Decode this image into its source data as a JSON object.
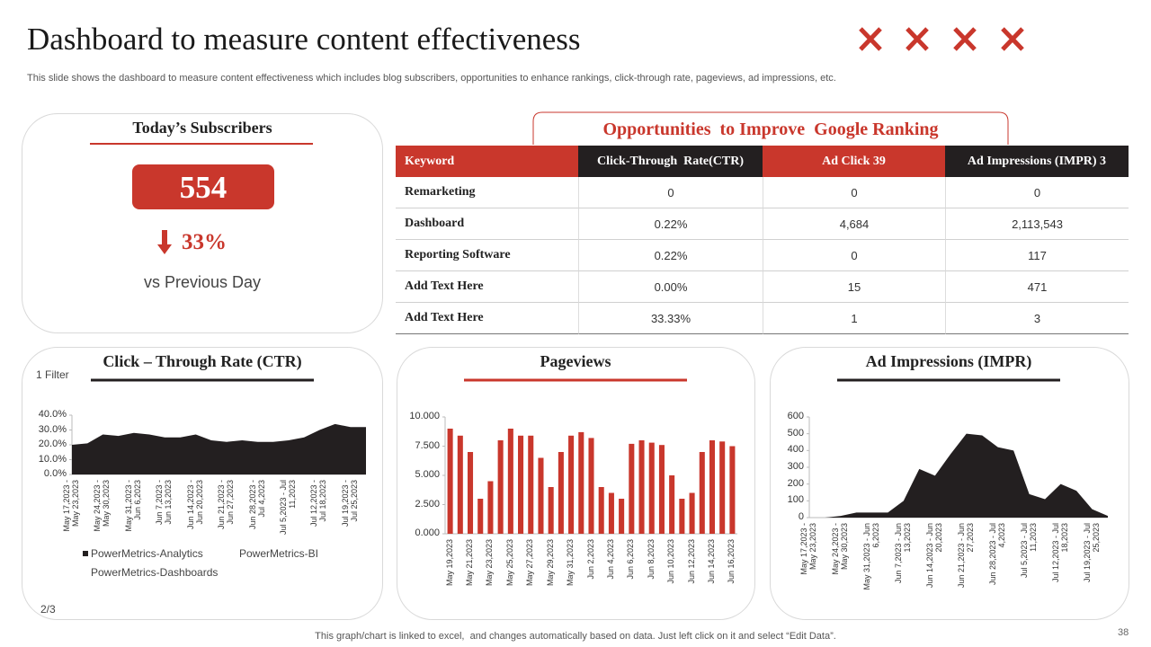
{
  "header": {
    "title": "Dashboard to measure content effectiveness",
    "subtitle": "This slide shows the dashboard to measure content effectiveness which includes blog subscribers, opportunities to enhance rankings, click-through rate, pageviews, ad impressions, etc."
  },
  "subscribers": {
    "title": "Today’s Subscribers",
    "value": 554,
    "change": "33%",
    "comparison": "vs Previous Day"
  },
  "table": {
    "title": "Opportunities  to Improve  Google Ranking",
    "header": [
      "Keyword",
      "Click-Through  Rate(CTR)",
      "Ad Click 39",
      "Ad Impressions (IMPR) 3"
    ],
    "header_colors": [
      "#c9372c",
      "#231f20",
      "#c9372c",
      "#231f20"
    ],
    "rows": [
      [
        "Remarketing",
        "0",
        "0",
        "0"
      ],
      [
        "Dashboard",
        "0.22%",
        "4,684",
        "2,113,543"
      ],
      [
        "Reporting Software",
        "0.22%",
        "0",
        "117"
      ],
      [
        "Add Text Here",
        "0.00%",
        "15",
        "471"
      ],
      [
        "Add Text Here",
        "33.33%",
        "1",
        "3"
      ]
    ]
  },
  "chart_data": [
    {
      "type": "area",
      "title": "Click – Through Rate (CTR)",
      "annotation": "1 Filter",
      "categories": [
        "May 17,2023 - May 23,2023",
        null,
        "May 24,2023 - May 30,2023",
        null,
        "May 31,2023 - Jun 6,2023",
        null,
        "Jun 7,2023 - Jun 13,2023",
        null,
        "Jun 14,2023 - Jun 20,2023",
        null,
        "Jun 21,2023 - Jun 27,2023",
        null,
        "Jun 28,2023 - Jul 4,2023",
        null,
        "Jul 5,2023 - Jul 11,2023",
        null,
        "Jul 12,2023 - Jul 18,2023",
        null,
        "Jul 19,2023 - Jul 25,2023",
        null
      ],
      "series": [
        {
          "name": "PowerMetrics-Analytics",
          "color": "#231f20",
          "values": [
            20,
            21,
            27,
            26,
            28,
            27,
            25,
            25,
            27,
            23,
            22,
            23,
            22,
            22,
            23,
            25,
            30,
            34,
            32,
            32
          ]
        },
        {
          "name": "PowerMetrics-BI",
          "values": [
            null,
            null,
            null,
            null,
            null,
            null,
            null,
            null,
            null,
            null,
            null,
            null,
            null,
            null,
            null,
            null,
            null,
            null,
            null,
            null
          ]
        },
        {
          "name": "PowerMetrics-Dashboards",
          "values": [
            null,
            null,
            null,
            null,
            null,
            null,
            null,
            null,
            null,
            null,
            null,
            null,
            null,
            null,
            null,
            null,
            null,
            null,
            null,
            null
          ]
        }
      ],
      "ylim": [
        0,
        40
      ],
      "yticks": [
        {
          "value": 0,
          "label": "0.0%"
        },
        {
          "value": 10,
          "label": "10.0%"
        },
        {
          "value": 20,
          "label": "20.0%"
        },
        {
          "value": 30,
          "label": "30.0%"
        },
        {
          "value": 40,
          "label": "40.0%"
        }
      ]
    },
    {
      "type": "bar",
      "title": "Pageviews",
      "categories": [
        "May 19,2023",
        null,
        "May 21,2023",
        null,
        "May 23,2023",
        null,
        "May 25,2023",
        null,
        "May 27,2023",
        null,
        "May 29,2023",
        null,
        "May 31,2023",
        null,
        "Jun 2,2023",
        null,
        "Jun 4,2023",
        null,
        "Jun 6,2023",
        null,
        "Jun 8,2023",
        null,
        "Jun 10,2023",
        null,
        "Jun 12,2023",
        null,
        "Jun 14,2023",
        null,
        "Jun 16,2023"
      ],
      "values": [
        9.0,
        8.4,
        7.0,
        3.0,
        4.5,
        8.0,
        9.0,
        8.4,
        8.4,
        6.5,
        4.0,
        7.0,
        8.4,
        8.7,
        8.2,
        4.0,
        3.5,
        3.0,
        7.7,
        8.0,
        7.8,
        7.6,
        5.0,
        3.0,
        3.5,
        7.0,
        8.0,
        7.9,
        7.5
      ],
      "color": "#c9372c",
      "ylim": [
        0,
        10
      ],
      "yticks": [
        {
          "value": 0,
          "label": "0.000"
        },
        {
          "value": 2.5,
          "label": "2.500"
        },
        {
          "value": 5,
          "label": "5.000"
        },
        {
          "value": 7.5,
          "label": "7.500"
        },
        {
          "value": 10,
          "label": "10.000"
        }
      ]
    },
    {
      "type": "area",
      "title": "Ad Impressions (IMPR)",
      "categories": [
        "May 17,2023 - May 23,2023",
        null,
        "May 24,2023 - May 30,2023",
        null,
        "May 31,2023 - Jun 6,2023",
        null,
        "Jun 7,2023 - Jun 13,2023",
        null,
        "Jun 14,2023 - Jun 20,2023",
        null,
        "Jun 21,2023 - Jun 27,2023",
        null,
        "Jun 28,2023 - Jul 4,2023",
        null,
        "Jul 5,2023 - Jul 11,2023",
        null,
        "Jul 12,2023 - Jul 18,2023",
        null,
        "Jul 19,2023 - Jul 25,2023",
        null
      ],
      "series": [
        {
          "name": "Ad Impressions",
          "color": "#231f20",
          "values": [
            0,
            0,
            10,
            30,
            30,
            30,
            100,
            290,
            250,
            380,
            500,
            490,
            420,
            400,
            140,
            110,
            200,
            160,
            50,
            10
          ]
        }
      ],
      "ylim": [
        0,
        600
      ],
      "yticks": [
        0,
        100,
        200,
        300,
        400,
        500,
        600
      ]
    }
  ],
  "slide": {
    "pager": "2/3",
    "page_number": "38",
    "footer": "This graph/chart is linked to excel,  and changes automatically based on data. Just left click on it and select “Edit Data”."
  }
}
